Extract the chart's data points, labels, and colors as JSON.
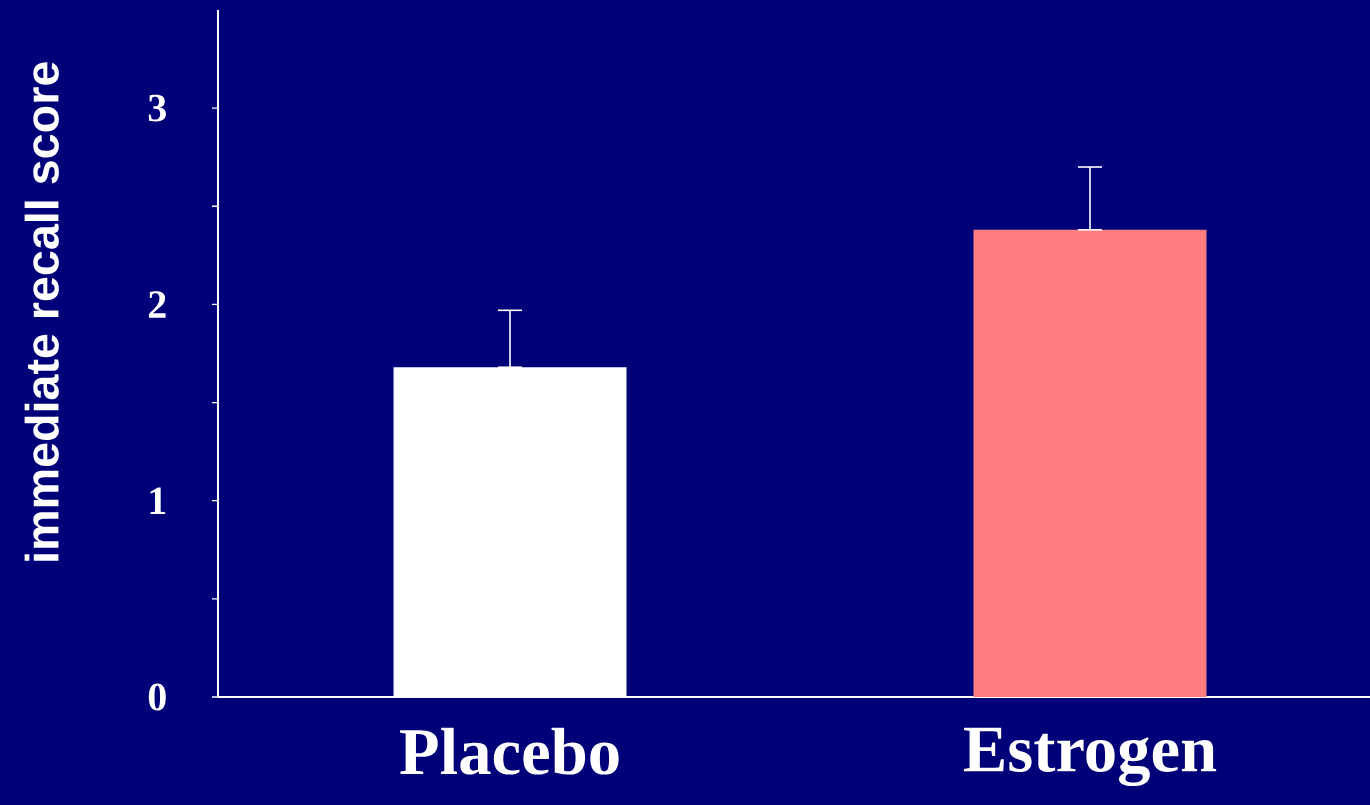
{
  "chart_data": {
    "type": "bar",
    "ylabel": "immediate recall score",
    "categories": [
      "Placebo",
      "Estrogen"
    ],
    "values": [
      1.68,
      2.38
    ],
    "colors": [
      "#ffffff",
      "#ff7c80"
    ],
    "errors": [
      [
        1.68,
        1.97
      ],
      [
        2.38,
        2.7
      ]
    ],
    "ylim": [
      0,
      3.5
    ],
    "yticks": [
      0,
      {
        "value": 0.5,
        "label": null
      },
      1,
      {
        "value": 1.5,
        "label": null
      },
      2,
      {
        "value": 2.5,
        "label": null
      },
      3
    ]
  }
}
